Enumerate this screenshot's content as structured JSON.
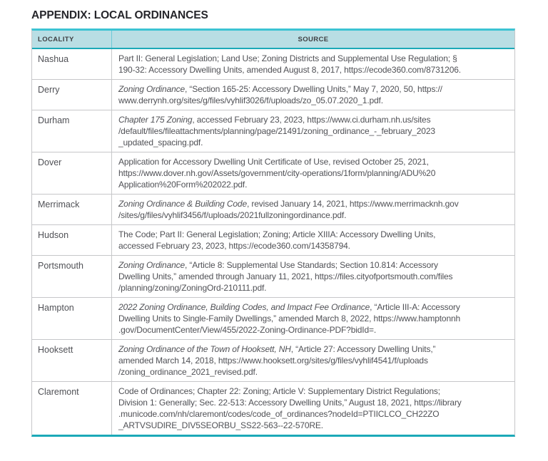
{
  "page_title": "APPENDIX: LOCAL ORDINANCES",
  "colors": {
    "accent_cyan": "#3cc3d3",
    "accent_teal": "#1ca9b8",
    "header_bg": "#b9dee4",
    "grid": "#c6c7c9",
    "text": "#505156",
    "title": "#26262b"
  },
  "table": {
    "columns": [
      "LOCALITY",
      "SOURCE"
    ],
    "rows": [
      {
        "locality": "Nashua",
        "source_italic": "",
        "source_text": "Part II: General Legislation; Land Use; Zoning Districts and Supplemental Use Regulation; §\n190-32: Accessory Dwelling Units, amended August 8, 2017, https://ecode360.com/8731206."
      },
      {
        "locality": "Derry",
        "source_italic": "Zoning Ordinance",
        "source_text": ", “Section 165-25: Accessory Dwelling Units,” May 7, 2020, 50, https://\nwww.derrynh.org/sites/g/files/vyhlif3026/f/uploads/zo_05.07.2020_1.pdf."
      },
      {
        "locality": "Durham",
        "source_italic": "Chapter 175 Zoning",
        "source_text": ", accessed February 23, 2023, https://www.ci.durham.nh.us/sites\n/default/files/fileattachments/planning/page/21491/zoning_ordinance_-_february_2023\n_updated_spacing.pdf."
      },
      {
        "locality": "Dover",
        "source_italic": "",
        "source_text": "Application for Accessory Dwelling Unit Certificate of Use, revised October 25, 2021,\nhttps://www.dover.nh.gov/Assets/government/city-operations/1form/planning/ADU%20\nApplication%20Form%202022.pdf."
      },
      {
        "locality": "Merrimack",
        "source_italic": "Zoning Ordinance & Building Code",
        "source_text": ", revised January 14, 2021, https://www.merrimacknh.gov\n/sites/g/files/vyhlif3456/f/uploads/2021fullzoningordinance.pdf."
      },
      {
        "locality": "Hudson",
        "source_italic": "",
        "source_text": "The Code; Part II: General Legislation; Zoning; Article XIIIA: Accessory Dwelling Units,\naccessed February 23, 2023, https://ecode360.com/14358794."
      },
      {
        "locality": "Portsmouth",
        "source_italic": "Zoning Ordinance",
        "source_text": ", “Article 8: Supplemental Use Standards; Section 10.814: Accessory\nDwelling Units,” amended through January 11, 2021, https://files.cityofportsmouth.com/files\n/planning/zoning/ZoningOrd-210111.pdf."
      },
      {
        "locality": "Hampton",
        "source_italic": "2022 Zoning Ordinance, Building Codes, and Impact Fee Ordinance",
        "source_text": ", “Article III-A: Accessory\nDwelling Units to Single-Family Dwellings,” amended March 8, 2022, https://www.hamptonnh\n.gov/DocumentCenter/View/455/2022-Zoning-Ordinance-PDF?bidId=."
      },
      {
        "locality": "Hooksett",
        "source_italic": "Zoning Ordinance of the Town of Hooksett, NH",
        "source_text": ", “Article 27: Accessory Dwelling Units,”\namended March 14, 2018, https://www.hooksett.org/sites/g/files/vyhlif4541/f/uploads\n/zoning_ordinance_2021_revised.pdf."
      },
      {
        "locality": "Claremont",
        "source_italic": "",
        "source_text": "Code of Ordinances; Chapter 22: Zoning; Article V: Supplementary District Regulations;\nDivision 1: Generally; Sec. 22-513: Accessory Dwelling Units,” August 18, 2021, https://library\n.municode.com/nh/claremont/codes/code_of_ordinances?nodeId=PTIICLCO_CH22ZO\n_ARTVSUDIRE_DIV5SEORBU_SS22-563--22-570RE."
      }
    ]
  }
}
